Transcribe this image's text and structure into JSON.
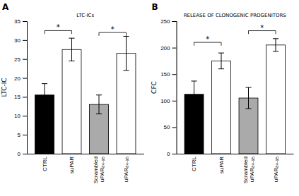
{
  "chart_data": [
    {
      "type": "bar",
      "panel_label": "A",
      "title": "LTC-ICs",
      "ylabel": "LTC-IC",
      "categories": [
        "CTRL",
        "suPAR",
        "Scrambled\nuPAR₈₄₋₉₅",
        "uPAR₈₄₋₉₅"
      ],
      "values": [
        15.5,
        27.5,
        13.0,
        26.5
      ],
      "errors": [
        3.0,
        3.0,
        2.5,
        4.5
      ],
      "colors": [
        "black",
        "white",
        "#aaaaaa",
        "white"
      ],
      "ylim": [
        0,
        35
      ],
      "yticks": [
        0,
        5,
        10,
        15,
        20,
        25,
        30,
        35
      ],
      "grid": false,
      "annotations": [
        {
          "from": "CTRL",
          "to": "suPAR",
          "y": 32.5,
          "text": "*"
        },
        {
          "from": "Scrambled\nuPAR₈₄₋₉₅",
          "to": "uPAR₈₄₋₉₅",
          "y": 32.0,
          "text": "*"
        }
      ]
    },
    {
      "type": "bar",
      "panel_label": "B",
      "title": "RELEASE OF CLONOGENIC PROGENITORS",
      "ylabel": "CFC",
      "categories": [
        "CTRL",
        "suPAR",
        "Scrambled\nuPAR₈₄₋₉₅",
        "uPAR₈₄₋₉₅"
      ],
      "values": [
        112.0,
        175.0,
        105.0,
        205.0
      ],
      "errors": [
        25.0,
        15.0,
        20.0,
        12.0
      ],
      "colors": [
        "black",
        "white",
        "#aaaaaa",
        "white"
      ],
      "ylim": [
        0,
        250
      ],
      "yticks": [
        0,
        50,
        100,
        150,
        200,
        250
      ],
      "grid": false,
      "annotations": [
        {
          "from": "CTRL",
          "to": "suPAR",
          "y": 210.0,
          "text": "*"
        },
        {
          "from": "Scrambled\nuPAR₈₄₋₉₅",
          "to": "uPAR₈₄₋₉₅",
          "y": 232.0,
          "text": "*"
        }
      ]
    }
  ]
}
